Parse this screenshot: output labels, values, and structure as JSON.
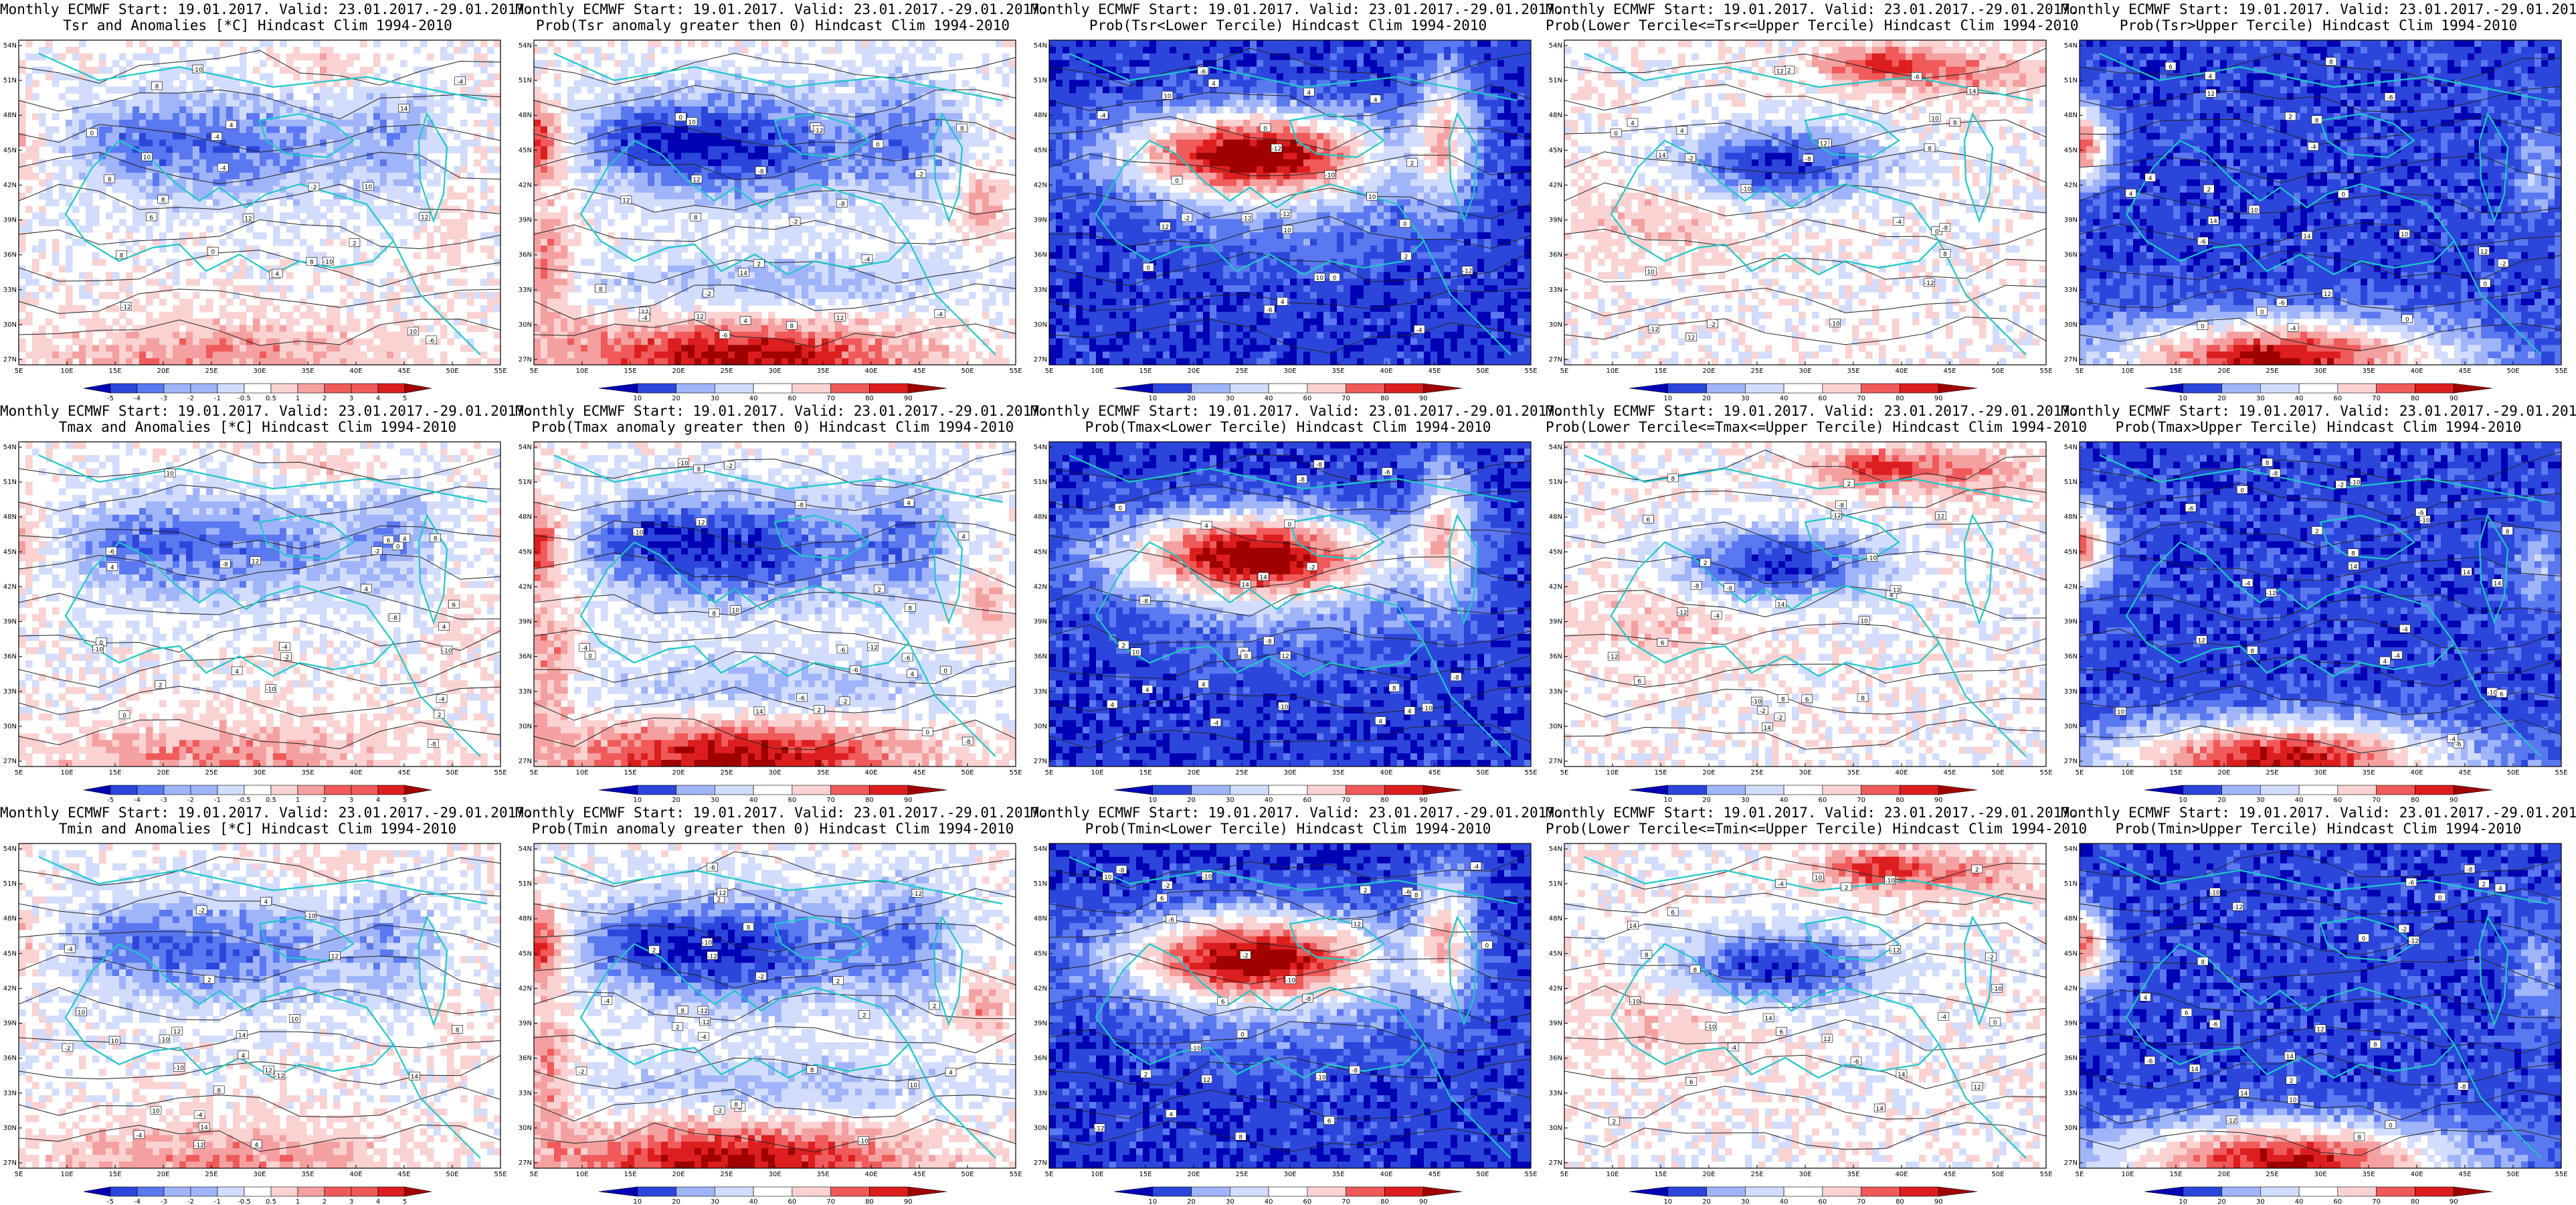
{
  "figure": {
    "title_prefix": "Monthly ECMWF Start: 19.01.2017. Valid: 23.01.2017.-29.01.2017.",
    "lat_ticks": [
      "54N",
      "51N",
      "48N",
      "45N",
      "42N",
      "39N",
      "36N",
      "33N",
      "30N",
      "27N"
    ],
    "lon_ticks": [
      "5E",
      "10E",
      "15E",
      "20E",
      "25E",
      "30E",
      "35E",
      "40E",
      "45E",
      "50E",
      "55E"
    ],
    "colorbars": {
      "anomaly": [
        "-5",
        "-4",
        "-3",
        "-2",
        "-1",
        "-0.5",
        "0.5",
        "1",
        "2",
        "3",
        "4",
        "5"
      ],
      "probability": [
        "10",
        "20",
        "30",
        "40",
        "60",
        "70",
        "80",
        "90"
      ]
    },
    "colors": {
      "blue_deep": "#0000b4",
      "blue": "#2c46dc",
      "blue_mid": "#5a78f0",
      "blue_light": "#a0b4fa",
      "blue_pale": "#d2dcfc",
      "white": "#ffffff",
      "red_pale": "#fad2d2",
      "red_light": "#f5a0a0",
      "red_mid": "#f05a5a",
      "red": "#dc1e1e",
      "red_deep": "#a00000",
      "coast": "#1ec8c8",
      "contour": "#222222"
    }
  },
  "panels": [
    {
      "title": "Tsr and Anomalies [*C] Hindcast Clim 1994-2010",
      "colorbar": "anomaly",
      "pattern": "anom"
    },
    {
      "title": "Prob(Tsr anomaly greater then 0) Hindcast Clim 1994-2010",
      "colorbar": "probability",
      "pattern": "probpos"
    },
    {
      "title": "Prob(Tsr<Lower Tercile) Hindcast Clim 1994-2010",
      "colorbar": "probability",
      "pattern": "lower"
    },
    {
      "title": "Prob(Lower Tercile<=Tsr<=Upper Tercile) Hindcast Clim 1994-2010",
      "colorbar": "probability",
      "pattern": "middle"
    },
    {
      "title": "Prob(Tsr>Upper Tercile) Hindcast Clim 1994-2010",
      "colorbar": "probability",
      "pattern": "upper"
    },
    {
      "title": "Tmax and Anomalies [*C] Hindcast Clim 1994-2010",
      "colorbar": "anomaly",
      "pattern": "anom"
    },
    {
      "title": "Prob(Tmax anomaly greater then 0) Hindcast Clim 1994-2010",
      "colorbar": "probability",
      "pattern": "probpos"
    },
    {
      "title": "Prob(Tmax<Lower Tercile) Hindcast Clim 1994-2010",
      "colorbar": "probability",
      "pattern": "lower"
    },
    {
      "title": "Prob(Lower Tercile<=Tmax<=Upper Tercile) Hindcast Clim 1994-2010",
      "colorbar": "probability",
      "pattern": "middle"
    },
    {
      "title": "Prob(Tmax>Upper Tercile) Hindcast Clim 1994-2010",
      "colorbar": "probability",
      "pattern": "upper"
    },
    {
      "title": "Tmin and Anomalies [*C] Hindcast Clim 1994-2010",
      "colorbar": "anomaly",
      "pattern": "anom"
    },
    {
      "title": "Prob(Tmin anomaly greater then 0) Hindcast Clim 1994-2010",
      "colorbar": "probability",
      "pattern": "probpos"
    },
    {
      "title": "Prob(Tmin<Lower Tercile) Hindcast Clim 1994-2010",
      "colorbar": "probability",
      "pattern": "lower"
    },
    {
      "title": "Prob(Lower Tercile<=Tmin<=Upper Tercile) Hindcast Clim 1994-2010",
      "colorbar": "probability",
      "pattern": "middle"
    },
    {
      "title": "Prob(Tmin>Upper Tercile) Hindcast Clim 1994-2010",
      "colorbar": "probability",
      "pattern": "upper"
    }
  ],
  "contour_labels": [
    "-12",
    "-10",
    "-8",
    "-6",
    "-4",
    "-2",
    "0",
    "2",
    "4",
    "6",
    "8",
    "10",
    "12",
    "14"
  ]
}
